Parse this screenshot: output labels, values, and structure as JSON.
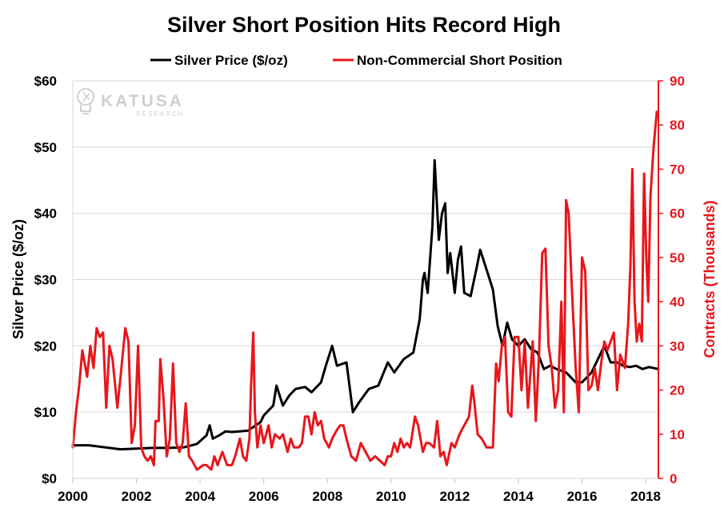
{
  "chart_data": {
    "type": "line",
    "title": "Silver Short Position Hits Record High",
    "watermark": {
      "brand": "KATUSA",
      "sub": "RESEARCH"
    },
    "legend_placement": "top",
    "grid": {
      "horizontal": true,
      "vertical": false
    },
    "x_ticks": [
      2000,
      2002,
      2004,
      2006,
      2008,
      2010,
      2012,
      2014,
      2016,
      2018
    ],
    "xlim": [
      2000,
      2018.4
    ],
    "y_left": {
      "label": "Silver Price ($/oz)",
      "lim": [
        0,
        60
      ],
      "ticks": [
        0,
        10,
        20,
        30,
        40,
        50,
        60
      ],
      "tick_labels": [
        "$0",
        "$10",
        "$20",
        "$30",
        "$40",
        "$50",
        "$60"
      ],
      "color": "#000000"
    },
    "y_right": {
      "label": "Contracts (Thousands)",
      "lim": [
        0,
        90
      ],
      "ticks": [
        0,
        10,
        20,
        30,
        40,
        50,
        60,
        70,
        80,
        90
      ],
      "tick_labels": [
        "0",
        "10",
        "20",
        "30",
        "40",
        "50",
        "60",
        "70",
        "80",
        "90"
      ],
      "color": "#e8161b"
    },
    "series": [
      {
        "name": "Silver Price ($/oz)",
        "axis": "left",
        "color": "#000000",
        "points": [
          [
            2000.0,
            5.0
          ],
          [
            2000.5,
            5.0
          ],
          [
            2001.0,
            4.7
          ],
          [
            2001.5,
            4.4
          ],
          [
            2002.0,
            4.5
          ],
          [
            2002.5,
            4.6
          ],
          [
            2003.0,
            4.6
          ],
          [
            2003.5,
            4.7
          ],
          [
            2003.9,
            5.2
          ],
          [
            2004.2,
            6.5
          ],
          [
            2004.3,
            8.0
          ],
          [
            2004.4,
            6.0
          ],
          [
            2004.6,
            6.5
          ],
          [
            2004.8,
            7.1
          ],
          [
            2005.0,
            7.0
          ],
          [
            2005.5,
            7.2
          ],
          [
            2005.9,
            8.5
          ],
          [
            2006.0,
            9.5
          ],
          [
            2006.3,
            11.0
          ],
          [
            2006.4,
            14.0
          ],
          [
            2006.6,
            11.0
          ],
          [
            2006.8,
            12.5
          ],
          [
            2007.0,
            13.5
          ],
          [
            2007.3,
            13.8
          ],
          [
            2007.5,
            13.0
          ],
          [
            2007.8,
            14.5
          ],
          [
            2007.95,
            17.0
          ],
          [
            2008.15,
            20.0
          ],
          [
            2008.3,
            17.0
          ],
          [
            2008.6,
            17.5
          ],
          [
            2008.8,
            10.0
          ],
          [
            2009.0,
            11.5
          ],
          [
            2009.3,
            13.5
          ],
          [
            2009.6,
            14.0
          ],
          [
            2009.9,
            17.5
          ],
          [
            2010.1,
            16.0
          ],
          [
            2010.4,
            18.0
          ],
          [
            2010.7,
            19.0
          ],
          [
            2010.9,
            24.0
          ],
          [
            2011.0,
            30.0
          ],
          [
            2011.05,
            31.0
          ],
          [
            2011.15,
            28.0
          ],
          [
            2011.3,
            38.0
          ],
          [
            2011.37,
            48.0
          ],
          [
            2011.5,
            36.0
          ],
          [
            2011.6,
            40.0
          ],
          [
            2011.7,
            41.5
          ],
          [
            2011.78,
            31.0
          ],
          [
            2011.86,
            34.0
          ],
          [
            2012.0,
            28.0
          ],
          [
            2012.1,
            33.0
          ],
          [
            2012.2,
            35.0
          ],
          [
            2012.3,
            28.0
          ],
          [
            2012.5,
            27.5
          ],
          [
            2012.7,
            32.0
          ],
          [
            2012.8,
            34.5
          ],
          [
            2012.9,
            33.0
          ],
          [
            2013.1,
            30.0
          ],
          [
            2013.2,
            28.5
          ],
          [
            2013.35,
            23.0
          ],
          [
            2013.5,
            20.0
          ],
          [
            2013.65,
            23.5
          ],
          [
            2013.8,
            21.0
          ],
          [
            2014.0,
            20.0
          ],
          [
            2014.2,
            21.0
          ],
          [
            2014.4,
            19.5
          ],
          [
            2014.6,
            19.0
          ],
          [
            2014.8,
            16.5
          ],
          [
            2015.0,
            17.0
          ],
          [
            2015.2,
            16.5
          ],
          [
            2015.5,
            16.0
          ],
          [
            2015.8,
            14.5
          ],
          [
            2016.0,
            14.5
          ],
          [
            2016.3,
            16.0
          ],
          [
            2016.5,
            18.0
          ],
          [
            2016.7,
            20.0
          ],
          [
            2016.9,
            17.5
          ],
          [
            2017.1,
            17.5
          ],
          [
            2017.3,
            17.0
          ],
          [
            2017.5,
            16.8
          ],
          [
            2017.7,
            17.0
          ],
          [
            2017.9,
            16.5
          ],
          [
            2018.1,
            16.8
          ],
          [
            2018.4,
            16.5
          ]
        ]
      },
      {
        "name": "Non-Commercial Short Position",
        "axis": "right",
        "color": "#e8161b",
        "points": [
          [
            2000.0,
            7
          ],
          [
            2000.1,
            15
          ],
          [
            2000.2,
            21
          ],
          [
            2000.3,
            29
          ],
          [
            2000.45,
            23
          ],
          [
            2000.55,
            30
          ],
          [
            2000.65,
            25
          ],
          [
            2000.75,
            34
          ],
          [
            2000.85,
            32
          ],
          [
            2000.95,
            33
          ],
          [
            2001.05,
            16
          ],
          [
            2001.15,
            30
          ],
          [
            2001.25,
            27
          ],
          [
            2001.4,
            16
          ],
          [
            2001.5,
            23
          ],
          [
            2001.65,
            34
          ],
          [
            2001.75,
            31
          ],
          [
            2001.85,
            8
          ],
          [
            2001.95,
            12
          ],
          [
            2002.05,
            30
          ],
          [
            2002.15,
            7
          ],
          [
            2002.25,
            5
          ],
          [
            2002.35,
            4
          ],
          [
            2002.45,
            5
          ],
          [
            2002.55,
            3
          ],
          [
            2002.6,
            13
          ],
          [
            2002.7,
            13
          ],
          [
            2002.75,
            27
          ],
          [
            2002.85,
            18
          ],
          [
            2002.95,
            5
          ],
          [
            2003.05,
            9
          ],
          [
            2003.15,
            26
          ],
          [
            2003.25,
            8
          ],
          [
            2003.35,
            6
          ],
          [
            2003.45,
            8
          ],
          [
            2003.55,
            17
          ],
          [
            2003.65,
            5
          ],
          [
            2003.75,
            4
          ],
          [
            2003.9,
            2
          ],
          [
            2004.1,
            3
          ],
          [
            2004.2,
            3
          ],
          [
            2004.35,
            2
          ],
          [
            2004.45,
            5
          ],
          [
            2004.55,
            3
          ],
          [
            2004.7,
            6
          ],
          [
            2004.85,
            3
          ],
          [
            2005.0,
            3
          ],
          [
            2005.1,
            5
          ],
          [
            2005.25,
            9
          ],
          [
            2005.35,
            5
          ],
          [
            2005.45,
            4
          ],
          [
            2005.55,
            9
          ],
          [
            2005.6,
            21
          ],
          [
            2005.67,
            33
          ],
          [
            2005.72,
            15
          ],
          [
            2005.8,
            7
          ],
          [
            2005.9,
            12
          ],
          [
            2006.0,
            8
          ],
          [
            2006.15,
            12
          ],
          [
            2006.25,
            7
          ],
          [
            2006.35,
            10
          ],
          [
            2006.5,
            9
          ],
          [
            2006.6,
            10
          ],
          [
            2006.75,
            6
          ],
          [
            2006.85,
            9
          ],
          [
            2006.95,
            7
          ],
          [
            2007.1,
            7
          ],
          [
            2007.2,
            8
          ],
          [
            2007.3,
            14
          ],
          [
            2007.4,
            14
          ],
          [
            2007.5,
            10
          ],
          [
            2007.6,
            15
          ],
          [
            2007.7,
            12
          ],
          [
            2007.8,
            13
          ],
          [
            2007.9,
            9
          ],
          [
            2008.05,
            7
          ],
          [
            2008.15,
            9
          ],
          [
            2008.3,
            11
          ],
          [
            2008.4,
            12
          ],
          [
            2008.5,
            12
          ],
          [
            2008.6,
            9
          ],
          [
            2008.75,
            5
          ],
          [
            2008.9,
            4
          ],
          [
            2009.05,
            8
          ],
          [
            2009.2,
            6
          ],
          [
            2009.35,
            4
          ],
          [
            2009.5,
            5
          ],
          [
            2009.65,
            4
          ],
          [
            2009.8,
            3
          ],
          [
            2009.9,
            5
          ],
          [
            2010.0,
            5
          ],
          [
            2010.1,
            8
          ],
          [
            2010.2,
            6
          ],
          [
            2010.3,
            9
          ],
          [
            2010.4,
            7
          ],
          [
            2010.5,
            8
          ],
          [
            2010.6,
            7
          ],
          [
            2010.75,
            14
          ],
          [
            2010.85,
            12
          ],
          [
            2011.0,
            6
          ],
          [
            2011.1,
            8
          ],
          [
            2011.2,
            8
          ],
          [
            2011.35,
            7
          ],
          [
            2011.45,
            13
          ],
          [
            2011.55,
            5
          ],
          [
            2011.65,
            6
          ],
          [
            2011.75,
            3
          ],
          [
            2011.9,
            8
          ],
          [
            2012.0,
            7
          ],
          [
            2012.15,
            10
          ],
          [
            2012.3,
            12
          ],
          [
            2012.45,
            14
          ],
          [
            2012.55,
            21
          ],
          [
            2012.62,
            17
          ],
          [
            2012.72,
            10
          ],
          [
            2012.85,
            9
          ],
          [
            2013.0,
            7
          ],
          [
            2013.1,
            7
          ],
          [
            2013.2,
            7
          ],
          [
            2013.3,
            26
          ],
          [
            2013.38,
            22
          ],
          [
            2013.48,
            30
          ],
          [
            2013.58,
            32
          ],
          [
            2013.68,
            15
          ],
          [
            2013.78,
            14
          ],
          [
            2013.88,
            32
          ],
          [
            2014.0,
            32
          ],
          [
            2014.1,
            20
          ],
          [
            2014.2,
            31
          ],
          [
            2014.3,
            16
          ],
          [
            2014.45,
            31
          ],
          [
            2014.55,
            13
          ],
          [
            2014.65,
            28
          ],
          [
            2014.75,
            51
          ],
          [
            2014.85,
            52
          ],
          [
            2014.95,
            30
          ],
          [
            2015.05,
            25
          ],
          [
            2015.15,
            16
          ],
          [
            2015.25,
            20
          ],
          [
            2015.35,
            40
          ],
          [
            2015.43,
            15
          ],
          [
            2015.5,
            63
          ],
          [
            2015.58,
            60
          ],
          [
            2015.7,
            40
          ],
          [
            2015.8,
            25
          ],
          [
            2015.9,
            15
          ],
          [
            2016.0,
            50
          ],
          [
            2016.1,
            47
          ],
          [
            2016.2,
            20
          ],
          [
            2016.3,
            21
          ],
          [
            2016.4,
            25
          ],
          [
            2016.5,
            20
          ],
          [
            2016.6,
            26
          ],
          [
            2016.7,
            31
          ],
          [
            2016.8,
            29
          ],
          [
            2016.9,
            31
          ],
          [
            2017.0,
            33
          ],
          [
            2017.1,
            20
          ],
          [
            2017.2,
            28
          ],
          [
            2017.35,
            25
          ],
          [
            2017.45,
            35
          ],
          [
            2017.52,
            48
          ],
          [
            2017.58,
            70
          ],
          [
            2017.65,
            40
          ],
          [
            2017.72,
            31
          ],
          [
            2017.8,
            35
          ],
          [
            2017.88,
            31
          ],
          [
            2017.95,
            69
          ],
          [
            2018.02,
            50
          ],
          [
            2018.08,
            40
          ],
          [
            2018.15,
            64
          ],
          [
            2018.25,
            75
          ],
          [
            2018.35,
            83
          ]
        ]
      }
    ]
  }
}
